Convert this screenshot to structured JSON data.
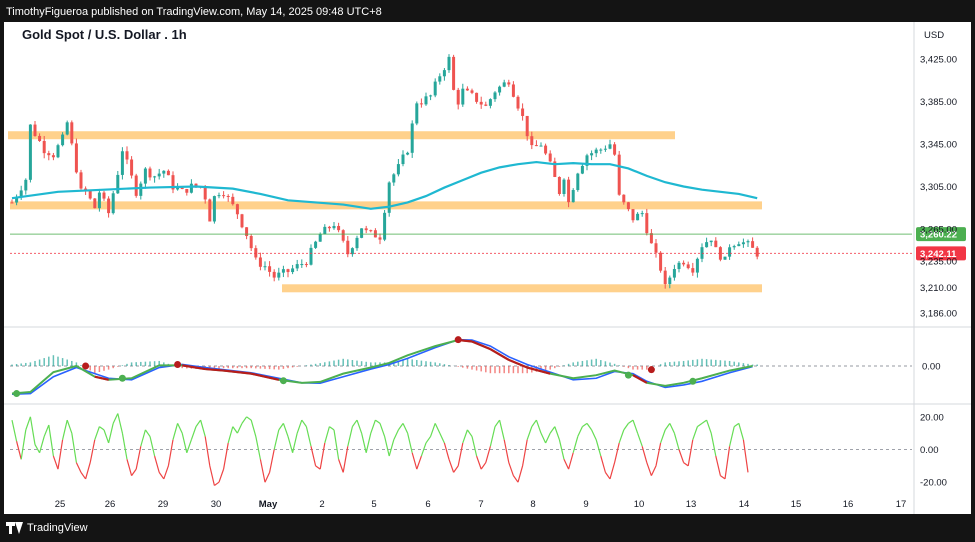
{
  "header": {
    "published": "TimothyFigueroa published on TradingView.com, May 14, 2025 09:48 UTC+8",
    "chart_title": "Gold Spot / U.S. Dollar . 1h"
  },
  "footer": {
    "brand": "TradingView"
  },
  "colors": {
    "up": "#26a69a",
    "down": "#ef5350",
    "ma": "#1fb8d1",
    "zone": "#ffcc80",
    "green_line": "#4caf50",
    "red_line": "#b71c1c",
    "osc_up": "#2e7d32",
    "osc_fast": "#2962ff",
    "rsi_up": "#66dd55",
    "rsi_down": "#ee4444",
    "price_badge_green": "#4caf50",
    "price_badge_red": "#f23645"
  },
  "chart_data": [
    {
      "type": "candlestick",
      "currency_label": "USD",
      "y_ticks": [
        "3,425.00",
        "3,385.00",
        "3,345.00",
        "3,305.00",
        "3,265.00",
        "3,235.00",
        "3,210.00",
        "3,186.00"
      ],
      "ylim": [
        3186,
        3440
      ],
      "x_labels": [
        "25",
        "26",
        "29",
        "30",
        "May",
        "2",
        "5",
        "6",
        "7",
        "8",
        "9",
        "10",
        "13",
        "14",
        "15",
        "16",
        "17"
      ],
      "current_prices": [
        {
          "label": "3,260.22",
          "value": 3260.22,
          "color": "green"
        },
        {
          "label": "3,242.11",
          "value": 3242.11,
          "color": "red"
        }
      ],
      "support_resistance_zones": [
        {
          "low": 3350,
          "high": 3357
        },
        {
          "low": 3285,
          "high": 3291
        },
        {
          "low": 3206,
          "high": 3213
        }
      ],
      "price_path": [
        [
          0,
          3290
        ],
        [
          3,
          3312
        ],
        [
          4,
          3362
        ],
        [
          7,
          3340
        ],
        [
          9,
          3335
        ],
        [
          11,
          3350
        ],
        [
          12,
          3365
        ],
        [
          15,
          3300
        ],
        [
          16,
          3300
        ],
        [
          18,
          3285
        ],
        [
          19,
          3300
        ],
        [
          20,
          3290
        ],
        [
          21,
          3280
        ],
        [
          23,
          3318
        ],
        [
          24,
          3340
        ],
        [
          27,
          3300
        ],
        [
          29,
          3320
        ],
        [
          31,
          3315
        ],
        [
          33,
          3320
        ],
        [
          35,
          3305
        ],
        [
          37,
          3300
        ],
        [
          39,
          3305
        ],
        [
          41,
          3305
        ],
        [
          42,
          3295
        ],
        [
          43,
          3275
        ],
        [
          44,
          3295
        ],
        [
          45,
          3300
        ],
        [
          46,
          3300
        ],
        [
          49,
          3280
        ],
        [
          51,
          3260
        ],
        [
          53,
          3235
        ],
        [
          55,
          3230
        ],
        [
          57,
          3220
        ],
        [
          60,
          3225
        ],
        [
          64,
          3235
        ],
        [
          67,
          3260
        ],
        [
          70,
          3270
        ],
        [
          73,
          3242
        ],
        [
          76,
          3267
        ],
        [
          77,
          3262
        ],
        [
          80,
          3258
        ],
        [
          82,
          3310
        ],
        [
          84,
          3323
        ],
        [
          86,
          3340
        ],
        [
          88,
          3385
        ],
        [
          89,
          3385
        ],
        [
          91,
          3390
        ],
        [
          93,
          3410
        ],
        [
          95,
          3425
        ],
        [
          96,
          3395
        ],
        [
          97,
          3385
        ],
        [
          98,
          3395
        ],
        [
          100,
          3390
        ],
        [
          103,
          3380
        ],
        [
          105,
          3395
        ],
        [
          108,
          3405
        ],
        [
          111,
          3370
        ],
        [
          113,
          3340
        ],
        [
          115,
          3345
        ],
        [
          117,
          3325
        ],
        [
          119,
          3300
        ],
        [
          120,
          3315
        ],
        [
          121,
          3290
        ],
        [
          123,
          3320
        ],
        [
          125,
          3335
        ],
        [
          128,
          3340
        ],
        [
          130,
          3345
        ],
        [
          131,
          3335
        ],
        [
          132,
          3295
        ],
        [
          135,
          3275
        ],
        [
          137,
          3280
        ],
        [
          139,
          3250
        ],
        [
          141,
          3228
        ],
        [
          142,
          3210
        ],
        [
          144,
          3230
        ],
        [
          146,
          3235
        ],
        [
          148,
          3228
        ],
        [
          150,
          3250
        ],
        [
          152,
          3257
        ],
        [
          153,
          3245
        ],
        [
          155,
          3235
        ],
        [
          156,
          3250
        ],
        [
          158,
          3254
        ],
        [
          160,
          3250
        ],
        [
          162,
          3242
        ]
      ],
      "moving_average_path": [
        [
          0,
          3294
        ],
        [
          10,
          3300
        ],
        [
          20,
          3302
        ],
        [
          30,
          3304
        ],
        [
          40,
          3305
        ],
        [
          48,
          3303
        ],
        [
          54,
          3298
        ],
        [
          60,
          3292
        ],
        [
          66,
          3290
        ],
        [
          72,
          3288
        ],
        [
          78,
          3284
        ],
        [
          82,
          3286
        ],
        [
          86,
          3290
        ],
        [
          90,
          3296
        ],
        [
          94,
          3304
        ],
        [
          98,
          3311
        ],
        [
          102,
          3318
        ],
        [
          106,
          3323
        ],
        [
          110,
          3326
        ],
        [
          114,
          3328
        ],
        [
          118,
          3326
        ],
        [
          122,
          3327
        ],
        [
          126,
          3326
        ],
        [
          130,
          3326
        ],
        [
          134,
          3322
        ],
        [
          138,
          3315
        ],
        [
          142,
          3309
        ],
        [
          146,
          3305
        ],
        [
          150,
          3302
        ],
        [
          154,
          3300
        ],
        [
          158,
          3298
        ],
        [
          162,
          3294
        ]
      ]
    },
    {
      "type": "line",
      "name": "",
      "y_ticks": [
        "0.00"
      ],
      "ylim": [
        -1,
        1
      ],
      "green_series": [
        [
          0,
          -0.9
        ],
        [
          4,
          -0.85
        ],
        [
          9,
          -0.2
        ],
        [
          14,
          0.0
        ],
        [
          18,
          -0.35
        ],
        [
          21,
          -0.45
        ],
        [
          26,
          -0.4
        ],
        [
          32,
          0.02
        ],
        [
          37,
          0.02
        ],
        [
          42,
          -0.1
        ],
        [
          46,
          -0.15
        ],
        [
          52,
          -0.25
        ],
        [
          58,
          -0.45
        ],
        [
          63,
          -0.55
        ],
        [
          67,
          -0.52
        ],
        [
          72,
          -0.25
        ],
        [
          78,
          -0.05
        ],
        [
          82,
          0.1
        ],
        [
          86,
          0.35
        ],
        [
          92,
          0.65
        ],
        [
          97,
          0.85
        ],
        [
          100,
          0.8
        ],
        [
          104,
          0.55
        ],
        [
          108,
          0.2
        ],
        [
          112,
          -0.05
        ],
        [
          117,
          -0.25
        ],
        [
          122,
          -0.4
        ],
        [
          127,
          -0.3
        ],
        [
          131,
          -0.15
        ],
        [
          135,
          -0.3
        ],
        [
          138,
          -0.55
        ],
        [
          142,
          -0.65
        ],
        [
          146,
          -0.55
        ],
        [
          150,
          -0.4
        ],
        [
          156,
          -0.15
        ],
        [
          161,
          0.0
        ]
      ],
      "red_series": [
        [
          0,
          -0.92
        ],
        [
          4,
          -0.9
        ],
        [
          9,
          -0.35
        ],
        [
          14,
          -0.05
        ],
        [
          18,
          -0.25
        ],
        [
          21,
          -0.4
        ],
        [
          26,
          -0.45
        ],
        [
          32,
          -0.05
        ],
        [
          37,
          0.05
        ],
        [
          42,
          -0.05
        ],
        [
          46,
          -0.12
        ],
        [
          52,
          -0.22
        ],
        [
          58,
          -0.4
        ],
        [
          63,
          -0.55
        ],
        [
          67,
          -0.56
        ],
        [
          72,
          -0.35
        ],
        [
          78,
          -0.1
        ],
        [
          82,
          0.05
        ],
        [
          86,
          0.25
        ],
        [
          92,
          0.6
        ],
        [
          97,
          0.86
        ],
        [
          100,
          0.85
        ],
        [
          104,
          0.65
        ],
        [
          108,
          0.3
        ],
        [
          112,
          0.05
        ],
        [
          117,
          -0.2
        ],
        [
          122,
          -0.45
        ],
        [
          127,
          -0.4
        ],
        [
          131,
          -0.18
        ],
        [
          135,
          -0.25
        ],
        [
          138,
          -0.5
        ],
        [
          142,
          -0.7
        ],
        [
          146,
          -0.62
        ],
        [
          150,
          -0.5
        ],
        [
          156,
          -0.22
        ],
        [
          161,
          -0.02
        ]
      ],
      "crosses": [
        {
          "x": 1,
          "y": -0.9,
          "color": "green"
        },
        {
          "x": 16,
          "y": 0.0,
          "color": "red"
        },
        {
          "x": 24,
          "y": -0.4,
          "color": "green"
        },
        {
          "x": 36,
          "y": 0.05,
          "color": "red"
        },
        {
          "x": 59,
          "y": -0.48,
          "color": "green"
        },
        {
          "x": 97,
          "y": 0.86,
          "color": "red"
        },
        {
          "x": 134,
          "y": -0.3,
          "color": "green"
        },
        {
          "x": 139,
          "y": -0.12,
          "color": "red"
        },
        {
          "x": 148,
          "y": -0.5,
          "color": "green"
        }
      ]
    },
    {
      "type": "line",
      "name": "",
      "y_ticks": [
        "20.00",
        "0.00",
        "-20.00"
      ],
      "ylim": [
        -26,
        26
      ],
      "values": [
        18,
        5,
        -6,
        12,
        20,
        3,
        -2,
        8,
        15,
        -4,
        -12,
        6,
        18,
        10,
        -8,
        -14,
        -18,
        -8,
        6,
        14,
        12,
        4,
        16,
        22,
        10,
        -6,
        -16,
        -12,
        2,
        12,
        8,
        -4,
        -14,
        -18,
        -10,
        6,
        16,
        10,
        -2,
        6,
        14,
        18,
        8,
        -10,
        -22,
        -20,
        -12,
        4,
        14,
        10,
        16,
        20,
        18,
        8,
        -6,
        -20,
        -14,
        0,
        12,
        16,
        8,
        -2,
        10,
        18,
        14,
        2,
        -10,
        -12,
        4,
        14,
        12,
        -6,
        -14,
        2,
        14,
        18,
        10,
        -2,
        10,
        18,
        16,
        8,
        -4,
        6,
        12,
        16,
        10,
        -2,
        -12,
        -4,
        4,
        8,
        16,
        10,
        4,
        -6,
        -14,
        -10,
        4,
        12,
        8,
        -4,
        -12,
        -8,
        2,
        14,
        18,
        6,
        -8,
        -16,
        -20,
        -10,
        6,
        14,
        18,
        10,
        4,
        10,
        14,
        6,
        -6,
        -12,
        -2,
        8,
        14,
        16,
        12,
        6,
        -4,
        -14,
        -18,
        -8,
        4,
        12,
        16,
        18,
        10,
        2,
        -8,
        -16,
        -10,
        4,
        12,
        16,
        10,
        0,
        -8,
        -10,
        6,
        14,
        16,
        18,
        10,
        -4,
        -16,
        -18,
        2,
        14,
        16,
        6,
        -14
      ]
    }
  ]
}
